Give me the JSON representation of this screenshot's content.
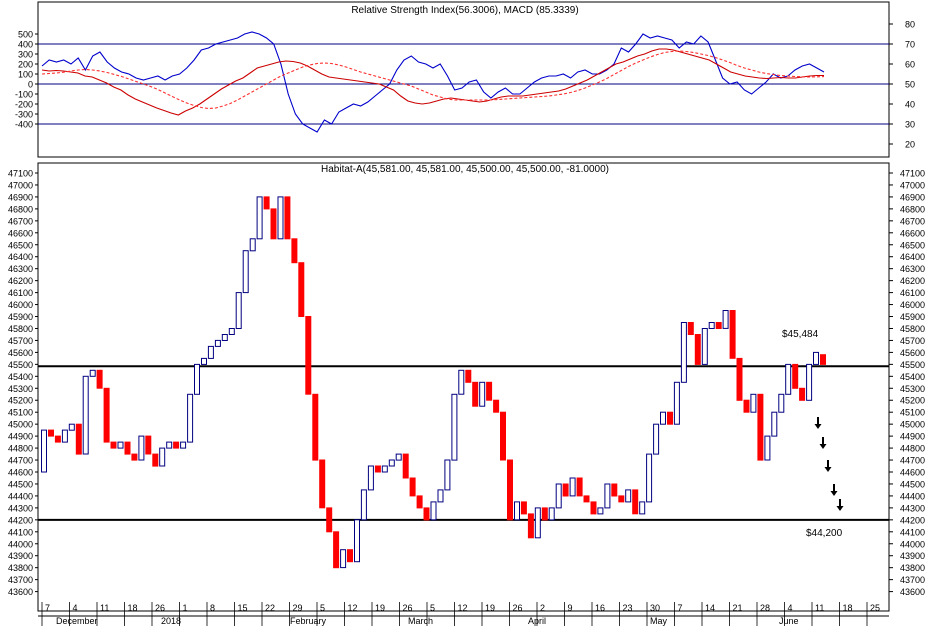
{
  "colors": {
    "up_outline": "#000080",
    "down_fill": "#ff0000",
    "rsi_line": "#0000cc",
    "macd_line": "#cc0000",
    "signal_line": "#ff3030",
    "guide_line": "#000080"
  },
  "top_panel": {
    "title": "Relative Strength Index(56.3006), MACD (85.3339)",
    "left_ticks": [
      "500",
      "400",
      "300",
      "200",
      "100",
      "0",
      "-100",
      "-200",
      "-300",
      "-400"
    ],
    "right_ticks": [
      "80",
      "70",
      "60",
      "50",
      "40",
      "30",
      "20"
    ]
  },
  "bottom_panel": {
    "title": "Habitat-A(45,581.00, 45,581.00, 45,500.00, 45,500.00, -81.0000)",
    "annotation_high": "$45,484",
    "annotation_low": "$44,200"
  },
  "x_axis": {
    "day_labels": [
      "7",
      "4",
      "11",
      "18",
      "26",
      "1",
      "8",
      "15",
      "22",
      "29",
      "5",
      "12",
      "19",
      "26",
      "5",
      "12",
      "19",
      "26",
      "2",
      "9",
      "16",
      "23",
      "30",
      "7",
      "14",
      "21",
      "28",
      "4",
      "11",
      "18",
      "25"
    ],
    "month_labels": [
      "December",
      "2018",
      "February",
      "March",
      "April",
      "May",
      "June"
    ]
  },
  "chart_data": [
    {
      "type": "line",
      "title": "Relative Strength Index(56.3006), MACD (85.3339)",
      "xlabel": "",
      "ylabel": "",
      "ylim": [
        -500,
        500
      ],
      "y2lim": [
        10,
        90
      ],
      "grid": false,
      "guide_levels_rsi": [
        70,
        50,
        30
      ],
      "series": [
        {
          "axis": "right",
          "values": [
            59,
            62,
            61,
            62,
            60,
            63,
            57,
            64,
            66,
            61,
            58,
            56,
            55,
            53,
            52,
            53,
            54,
            52,
            54,
            55,
            58,
            62,
            67,
            68,
            70,
            71,
            72,
            73,
            75,
            76,
            75,
            73,
            70,
            60,
            45,
            35,
            30,
            28,
            26,
            32,
            30,
            36,
            38,
            40,
            39,
            41,
            44,
            47,
            50,
            57,
            62,
            64,
            61,
            60,
            58,
            60,
            54,
            47,
            48,
            51,
            52,
            46,
            43,
            46,
            48,
            45,
            45,
            48,
            51,
            53,
            54,
            54,
            55,
            53,
            56,
            57,
            55,
            55,
            57,
            60,
            68,
            66,
            70,
            75,
            73,
            74,
            73,
            72,
            68,
            71,
            70,
            74,
            71,
            62,
            53,
            50,
            51,
            47,
            45,
            48,
            51,
            55,
            53,
            54,
            57,
            59,
            60,
            58,
            56
          ]
        },
        {
          "axis": "left",
          "values": [
            140,
            130,
            135,
            130,
            120,
            110,
            80,
            70,
            40,
            10,
            -30,
            -60,
            -110,
            -150,
            -180,
            -210,
            -240,
            -265,
            -290,
            -310,
            -270,
            -240,
            -200,
            -150,
            -100,
            -50,
            -10,
            30,
            60,
            110,
            160,
            180,
            200,
            220,
            230,
            225,
            210,
            180,
            140,
            100,
            70,
            60,
            50,
            40,
            30,
            20,
            10,
            0,
            -30,
            -60,
            -120,
            -170,
            -190,
            -200,
            -190,
            -170,
            -150,
            -140,
            -150,
            -160,
            -170,
            -180,
            -170,
            -150,
            -130,
            -120,
            -120,
            -120,
            -110,
            -100,
            -90,
            -80,
            -70,
            -50,
            -20,
            10,
            40,
            80,
            120,
            160,
            200,
            220,
            250,
            280,
            300,
            330,
            350,
            350,
            340,
            320,
            300,
            280,
            260,
            240,
            200,
            160,
            120,
            100,
            80,
            70,
            60,
            55,
            60,
            65,
            60,
            60,
            70,
            80,
            85,
            85
          ]
        },
        {
          "axis": "left",
          "values": [
            100,
            105,
            110,
            118,
            130,
            140,
            145,
            140,
            130,
            115,
            95,
            75,
            50,
            25,
            0,
            -25,
            -55,
            -90,
            -125,
            -160,
            -190,
            -215,
            -235,
            -245,
            -240,
            -220,
            -195,
            -160,
            -120,
            -80,
            -40,
            0,
            40,
            80,
            110,
            140,
            170,
            190,
            205,
            210,
            205,
            190,
            170,
            145,
            120,
            100,
            80,
            60,
            40,
            20,
            0,
            -20,
            -50,
            -80,
            -110,
            -130,
            -150,
            -160,
            -160,
            -160,
            -160,
            -160,
            -160,
            -155,
            -150,
            -145,
            -140,
            -135,
            -130,
            -125,
            -120,
            -110,
            -100,
            -85,
            -65,
            -40,
            -10,
            20,
            55,
            95,
            135,
            175,
            210,
            240,
            270,
            295,
            315,
            325,
            330,
            325,
            315,
            300,
            285,
            265,
            240,
            215,
            185,
            160,
            140,
            120,
            105,
            95,
            85,
            80,
            75,
            72,
            70,
            72,
            74
          ]
        }
      ]
    },
    {
      "type": "candlestick",
      "title": "Habitat-A(45,581.00, 45,581.00, 45,500.00, 45,500.00, -81.0000)",
      "xlabel": "",
      "ylabel": "",
      "ylim": [
        43500,
        47200
      ],
      "grid": false,
      "support_levels": [
        45484,
        44200
      ],
      "annotations": [
        {
          "text": "$45,484",
          "value": 45484
        },
        {
          "text": "$44,200",
          "value": 44200
        }
      ],
      "ohlc": [
        [
          44600,
          44950,
          44600,
          44950
        ],
        [
          44950,
          44950,
          44900,
          44900
        ],
        [
          44900,
          44950,
          44850,
          44850
        ],
        [
          44850,
          45000,
          44850,
          44950
        ],
        [
          44950,
          45000,
          44950,
          45000
        ],
        [
          45000,
          45000,
          44750,
          44750
        ],
        [
          44750,
          45400,
          44750,
          45400
        ],
        [
          45400,
          45450,
          45400,
          45450
        ],
        [
          45450,
          45450,
          45300,
          45300
        ],
        [
          45300,
          45300,
          44850,
          44850
        ],
        [
          44850,
          44900,
          44800,
          44800
        ],
        [
          44800,
          44850,
          44800,
          44850
        ],
        [
          44850,
          44850,
          44750,
          44750
        ],
        [
          44750,
          44750,
          44700,
          44700
        ],
        [
          44700,
          44900,
          44700,
          44900
        ],
        [
          44900,
          44900,
          44750,
          44750
        ],
        [
          44750,
          44750,
          44650,
          44650
        ],
        [
          44650,
          44800,
          44650,
          44800
        ],
        [
          44800,
          44850,
          44800,
          44850
        ],
        [
          44850,
          44850,
          44800,
          44800
        ],
        [
          44800,
          44850,
          44800,
          44850
        ],
        [
          44850,
          45250,
          44850,
          45250
        ],
        [
          45250,
          45500,
          45250,
          45500
        ],
        [
          45500,
          45550,
          45500,
          45550
        ],
        [
          45550,
          45650,
          45550,
          45650
        ],
        [
          45650,
          45700,
          45650,
          45700
        ],
        [
          45700,
          45750,
          45700,
          45750
        ],
        [
          45750,
          45800,
          45750,
          45800
        ],
        [
          45800,
          46100,
          45800,
          46100
        ],
        [
          46100,
          46450,
          46100,
          46450
        ],
        [
          46450,
          46550,
          46450,
          46550
        ],
        [
          46550,
          46900,
          46550,
          46900
        ],
        [
          46900,
          46900,
          46800,
          46800
        ],
        [
          46800,
          46800,
          46550,
          46550
        ],
        [
          46550,
          46900,
          46550,
          46900
        ],
        [
          46900,
          46900,
          46550,
          46550
        ],
        [
          46550,
          46550,
          46350,
          46350
        ],
        [
          46350,
          46350,
          45900,
          45900
        ],
        [
          45900,
          45900,
          45250,
          45250
        ],
        [
          45250,
          45250,
          44700,
          44700
        ],
        [
          44700,
          44700,
          44300,
          44300
        ],
        [
          44300,
          44300,
          44100,
          44100
        ],
        [
          44100,
          44100,
          43800,
          43800
        ],
        [
          43800,
          43950,
          43800,
          43950
        ],
        [
          43950,
          43950,
          43850,
          43850
        ],
        [
          43850,
          44200,
          43850,
          44200
        ],
        [
          44200,
          44450,
          44200,
          44450
        ],
        [
          44450,
          44650,
          44450,
          44650
        ],
        [
          44650,
          44650,
          44600,
          44600
        ],
        [
          44600,
          44650,
          44600,
          44650
        ],
        [
          44650,
          44700,
          44650,
          44700
        ],
        [
          44700,
          44750,
          44700,
          44750
        ],
        [
          44750,
          44750,
          44550,
          44550
        ],
        [
          44550,
          44550,
          44400,
          44400
        ],
        [
          44400,
          44400,
          44300,
          44300
        ],
        [
          44300,
          44300,
          44200,
          44200
        ],
        [
          44200,
          44350,
          44200,
          44350
        ],
        [
          44350,
          44450,
          44350,
          44450
        ],
        [
          44450,
          44700,
          44450,
          44700
        ],
        [
          44700,
          45250,
          44700,
          45250
        ],
        [
          45250,
          45450,
          45250,
          45450
        ],
        [
          45450,
          45450,
          45350,
          45350
        ],
        [
          45350,
          45350,
          45150,
          45150
        ],
        [
          45150,
          45350,
          45150,
          45350
        ],
        [
          45350,
          45350,
          45200,
          45200
        ],
        [
          45200,
          45200,
          45100,
          45100
        ],
        [
          45100,
          45100,
          44700,
          44700
        ],
        [
          44700,
          44700,
          44200,
          44200
        ],
        [
          44200,
          44350,
          44200,
          44350
        ],
        [
          44350,
          44350,
          44250,
          44250
        ],
        [
          44250,
          44250,
          44050,
          44050
        ],
        [
          44050,
          44300,
          44050,
          44300
        ],
        [
          44300,
          44300,
          44200,
          44200
        ],
        [
          44200,
          44300,
          44200,
          44300
        ],
        [
          44300,
          44500,
          44300,
          44500
        ],
        [
          44500,
          44500,
          44400,
          44400
        ],
        [
          44400,
          44550,
          44400,
          44550
        ],
        [
          44550,
          44550,
          44400,
          44400
        ],
        [
          44400,
          44400,
          44350,
          44350
        ],
        [
          44350,
          44350,
          44250,
          44250
        ],
        [
          44250,
          44300,
          44250,
          44300
        ],
        [
          44300,
          44500,
          44300,
          44500
        ],
        [
          44500,
          44500,
          44400,
          44400
        ],
        [
          44400,
          44400,
          44350,
          44350
        ],
        [
          44350,
          44450,
          44350,
          44450
        ],
        [
          44450,
          44450,
          44250,
          44250
        ],
        [
          44250,
          44350,
          44250,
          44350
        ],
        [
          44350,
          44750,
          44350,
          44750
        ],
        [
          44750,
          45000,
          44750,
          45000
        ],
        [
          45000,
          45100,
          45000,
          45100
        ],
        [
          45100,
          45100,
          45000,
          45000
        ],
        [
          45000,
          45350,
          45000,
          45350
        ],
        [
          45350,
          45850,
          45350,
          45850
        ],
        [
          45850,
          45850,
          45750,
          45750
        ],
        [
          45750,
          45750,
          45500,
          45500
        ],
        [
          45500,
          45800,
          45500,
          45800
        ],
        [
          45800,
          45850,
          45800,
          45850
        ],
        [
          45850,
          45850,
          45800,
          45800
        ],
        [
          45800,
          45950,
          45800,
          45950
        ],
        [
          45950,
          45950,
          45550,
          45550
        ],
        [
          45550,
          45550,
          45200,
          45200
        ],
        [
          45200,
          45200,
          45100,
          45100
        ],
        [
          45100,
          45250,
          45100,
          45250
        ],
        [
          45250,
          45250,
          44700,
          44700
        ],
        [
          44700,
          44900,
          44700,
          44900
        ],
        [
          44900,
          45100,
          44900,
          45100
        ],
        [
          45100,
          45250,
          45100,
          45250
        ],
        [
          45250,
          45500,
          45250,
          45500
        ],
        [
          45500,
          45500,
          45300,
          45300
        ],
        [
          45300,
          45300,
          45200,
          45200
        ],
        [
          45200,
          45500,
          45200,
          45500
        ],
        [
          45500,
          45600,
          45500,
          45600
        ],
        [
          45581,
          45581,
          45500,
          45500
        ]
      ]
    }
  ]
}
